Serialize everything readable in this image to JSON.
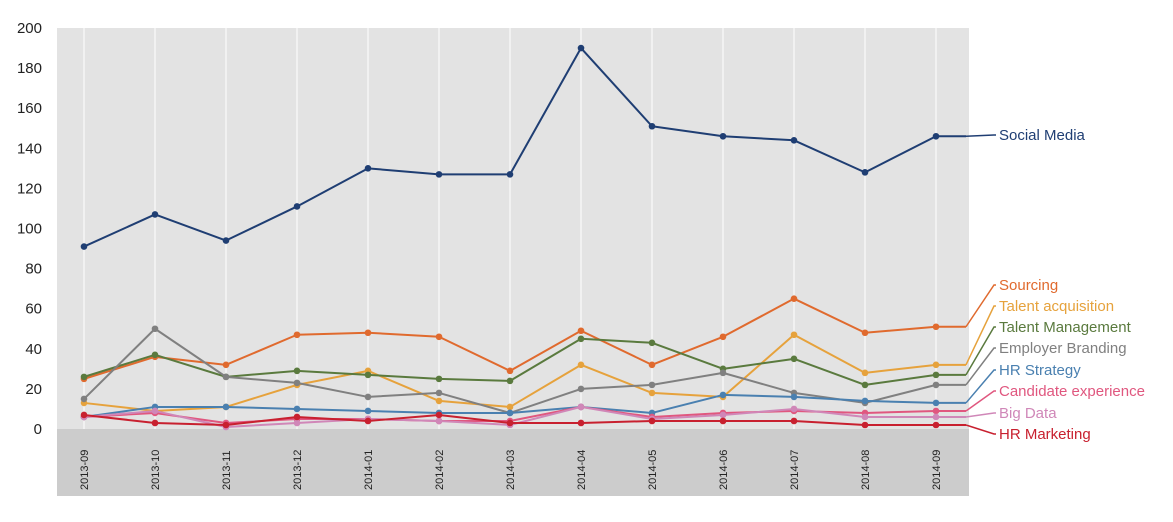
{
  "chart_data": {
    "type": "line",
    "categories": [
      "2013-09",
      "2013-10",
      "2013-11",
      "2013-12",
      "2014-01",
      "2014-02",
      "2014-03",
      "2014-04",
      "2014-05",
      "2014-06",
      "2014-07",
      "2014-08",
      "2014-09"
    ],
    "ylim": [
      0,
      200
    ],
    "yticks": [
      "0",
      "20",
      "40",
      "60",
      "80",
      "100",
      "120",
      "140",
      "160",
      "180",
      "200"
    ],
    "grid": "vertical",
    "legend": "right, labels at line ends",
    "series": [
      {
        "name": "Social Media",
        "color": "#1f3e73",
        "values": [
          91,
          107,
          94,
          111,
          130,
          127,
          127,
          190,
          151,
          146,
          144,
          128,
          146
        ]
      },
      {
        "name": "Sourcing",
        "color": "#e06a2e",
        "values": [
          25,
          36,
          32,
          47,
          48,
          46,
          29,
          49,
          32,
          46,
          65,
          48,
          51
        ]
      },
      {
        "name": "Talent acquisition",
        "color": "#e6a23c",
        "values": [
          13,
          9,
          11,
          22,
          29,
          14,
          11,
          32,
          18,
          16,
          47,
          28,
          32
        ]
      },
      {
        "name": "Talent Management",
        "color": "#5a7a3e",
        "values": [
          26,
          37,
          26,
          29,
          27,
          25,
          24,
          45,
          43,
          30,
          35,
          22,
          27
        ]
      },
      {
        "name": "Employer Branding",
        "color": "#808080",
        "values": [
          15,
          50,
          26,
          23,
          16,
          18,
          8,
          20,
          22,
          28,
          18,
          13,
          22
        ]
      },
      {
        "name": "HR Strategy",
        "color": "#4a80b0",
        "values": [
          6,
          11,
          11,
          10,
          9,
          8,
          8,
          11,
          8,
          17,
          16,
          14,
          13
        ]
      },
      {
        "name": "Candidate experience",
        "color": "#e0577f",
        "values": [
          6,
          8,
          3,
          5,
          5,
          4,
          4,
          11,
          6,
          8,
          9,
          8,
          9
        ]
      },
      {
        "name": "Big Data",
        "color": "#d087b8",
        "values": [
          6,
          9,
          1,
          3,
          5,
          4,
          2,
          11,
          5,
          7,
          10,
          6,
          6
        ]
      },
      {
        "name": "HR Marketing",
        "color": "#c8202f",
        "values": [
          7,
          3,
          2,
          6,
          4,
          7,
          3,
          3,
          4,
          4,
          4,
          2,
          2
        ]
      }
    ],
    "legend_entries": [
      "Social Media",
      "Sourcing",
      "Talent acquisition",
      "Talent Management",
      "Employer Branding",
      "HR Strategy",
      "Candidate experience",
      "Big Data",
      "HR Marketing"
    ]
  }
}
